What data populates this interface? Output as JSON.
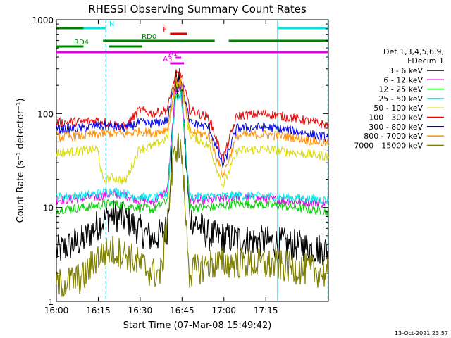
{
  "chart_data": {
    "type": "line",
    "title": "RHESSI Observing Summary Count Rates",
    "xlabel": "Start Time (07-Mar-08 15:49:42)",
    "ylabel": "Count Rate (s⁻¹ detector⁻¹)",
    "y_scale": "log",
    "ylim": [
      1,
      1000
    ],
    "xlim_minutes": [
      -9.7,
      87.7
    ],
    "x_ticks": [
      "16:00",
      "16:15",
      "16:30",
      "16:45",
      "17:00",
      "17:15"
    ],
    "y_ticks": [
      "1",
      "10",
      "100",
      "1000"
    ],
    "grid": false,
    "timestamp": "13-Oct-2021 23:57",
    "legend_header": [
      "Det 1,3,4,5,6,9,",
      "FDecim 1"
    ],
    "legend_position": "right",
    "series": [
      {
        "name": "3 - 6 keV",
        "color": "#000000",
        "points": [
          [
            -9.7,
            3.4
          ],
          [
            0,
            4.5
          ],
          [
            5,
            6.5
          ],
          [
            10,
            8.5
          ],
          [
            15,
            7.5
          ],
          [
            20,
            5.8
          ],
          [
            25,
            4.6
          ],
          [
            30,
            6
          ],
          [
            33,
            200
          ],
          [
            35,
            210
          ],
          [
            38,
            8
          ],
          [
            45,
            5
          ],
          [
            55,
            4.6
          ],
          [
            70,
            4.2
          ],
          [
            87.7,
            3.5
          ]
        ]
      },
      {
        "name": "6 - 12 keV",
        "color": "#e600e6",
        "points": [
          [
            -9.7,
            12
          ],
          [
            0,
            12.5
          ],
          [
            5,
            13
          ],
          [
            10,
            14
          ],
          [
            15,
            13.5
          ],
          [
            20,
            12
          ],
          [
            25,
            11.5
          ],
          [
            30,
            15
          ],
          [
            33,
            180
          ],
          [
            35,
            185
          ],
          [
            38,
            12
          ],
          [
            45,
            12
          ],
          [
            55,
            13
          ],
          [
            70,
            12
          ],
          [
            87.7,
            11
          ]
        ]
      },
      {
        "name": "12 - 25 keV",
        "color": "#00cc00",
        "points": [
          [
            -9.7,
            9.5
          ],
          [
            0,
            10
          ],
          [
            5,
            10.5
          ],
          [
            10,
            11
          ],
          [
            15,
            10.5
          ],
          [
            20,
            10
          ],
          [
            25,
            9.5
          ],
          [
            30,
            12
          ],
          [
            33,
            160
          ],
          [
            35,
            165
          ],
          [
            38,
            10
          ],
          [
            45,
            10
          ],
          [
            55,
            11
          ],
          [
            70,
            10.5
          ],
          [
            87.7,
            9
          ]
        ]
      },
      {
        "name": "25 - 50 keV",
        "color": "#00e6e6",
        "points": [
          [
            -9.7,
            13
          ],
          [
            0,
            13.5
          ],
          [
            5,
            14
          ],
          [
            10,
            15
          ],
          [
            15,
            14
          ],
          [
            20,
            13
          ],
          [
            25,
            12.5
          ],
          [
            30,
            14
          ],
          [
            33,
            150
          ],
          [
            35,
            155
          ],
          [
            38,
            13
          ],
          [
            45,
            13
          ],
          [
            55,
            13.5
          ],
          [
            70,
            13
          ],
          [
            87.7,
            12
          ]
        ]
      },
      {
        "name": "50 - 100 keV",
        "color": "#d9d900",
        "points": [
          [
            -9.7,
            38
          ],
          [
            0,
            40
          ],
          [
            5,
            42
          ],
          [
            7,
            19
          ],
          [
            10,
            21
          ],
          [
            15,
            19
          ],
          [
            20,
            42
          ],
          [
            25,
            45
          ],
          [
            30,
            55
          ],
          [
            33,
            210
          ],
          [
            35,
            215
          ],
          [
            38,
            60
          ],
          [
            45,
            45
          ],
          [
            50,
            17
          ],
          [
            55,
            40
          ],
          [
            65,
            42
          ],
          [
            70,
            40
          ],
          [
            87.7,
            35
          ]
        ]
      },
      {
        "name": "100 - 300 keV",
        "color": "#e60000",
        "points": [
          [
            -9.7,
            80
          ],
          [
            0,
            82
          ],
          [
            5,
            85
          ],
          [
            10,
            78
          ],
          [
            15,
            72
          ],
          [
            20,
            110
          ],
          [
            25,
            100
          ],
          [
            30,
            110
          ],
          [
            33,
            260
          ],
          [
            35,
            265
          ],
          [
            38,
            110
          ],
          [
            45,
            90
          ],
          [
            50,
            33
          ],
          [
            55,
            95
          ],
          [
            65,
            100
          ],
          [
            75,
            90
          ],
          [
            87.7,
            75
          ]
        ]
      },
      {
        "name": "300 - 800 keV",
        "color": "#0000e6",
        "points": [
          [
            -9.7,
            68
          ],
          [
            0,
            70
          ],
          [
            5,
            75
          ],
          [
            10,
            73
          ],
          [
            15,
            70
          ],
          [
            20,
            80
          ],
          [
            25,
            78
          ],
          [
            30,
            85
          ],
          [
            33,
            230
          ],
          [
            35,
            235
          ],
          [
            38,
            80
          ],
          [
            45,
            72
          ],
          [
            50,
            28
          ],
          [
            55,
            70
          ],
          [
            65,
            72
          ],
          [
            75,
            66
          ],
          [
            87.7,
            55
          ]
        ]
      },
      {
        "name": "800 - 7000 keV",
        "color": "#ff8c00",
        "points": [
          [
            -9.7,
            56
          ],
          [
            0,
            58
          ],
          [
            5,
            60
          ],
          [
            10,
            62
          ],
          [
            15,
            60
          ],
          [
            20,
            65
          ],
          [
            25,
            62
          ],
          [
            30,
            68
          ],
          [
            33,
            220
          ],
          [
            35,
            222
          ],
          [
            38,
            65
          ],
          [
            45,
            58
          ],
          [
            50,
            22
          ],
          [
            55,
            58
          ],
          [
            65,
            60
          ],
          [
            75,
            56
          ],
          [
            87.7,
            48
          ]
        ]
      },
      {
        "name": "7000 - 15000 keV",
        "color": "#808000",
        "points": [
          [
            -9.7,
            1.5
          ],
          [
            0,
            1.8
          ],
          [
            5,
            3
          ],
          [
            10,
            3.5
          ],
          [
            15,
            3.2
          ],
          [
            20,
            2.5
          ],
          [
            25,
            2
          ],
          [
            28,
            2
          ],
          [
            30,
            8
          ],
          [
            33,
            45
          ],
          [
            35,
            42
          ],
          [
            38,
            2
          ],
          [
            45,
            2.5
          ],
          [
            55,
            2.6
          ],
          [
            70,
            2.4
          ],
          [
            87.7,
            2
          ]
        ]
      }
    ],
    "annotations": [
      {
        "label": "N",
        "color": "#00e6e6",
        "segments": [
          [
            -9.7,
            8
          ]
        ]
      },
      {
        "label": "",
        "color": "#00e6e6",
        "segments": [
          [
            69.5,
            87.7
          ]
        ]
      },
      {
        "label": "F",
        "color": "#e60000",
        "segments": [
          [
            31,
            37
          ]
        ]
      },
      {
        "label": "RD0",
        "color": "#008000",
        "segments": [
          [
            7,
            47
          ],
          [
            52,
            87.7
          ]
        ]
      },
      {
        "label": "RD4",
        "color": "#008000",
        "segments": [
          [
            -9.7,
            0
          ],
          [
            9,
            21
          ]
        ]
      },
      {
        "label": "",
        "color": "#008000",
        "segments": [
          [
            -9.7,
            0
          ]
        ]
      },
      {
        "label": "A1",
        "color": "#e600e6",
        "segments": [
          [
            33,
            35
          ]
        ]
      },
      {
        "label": "A3",
        "color": "#e600e6",
        "segments": [
          [
            31,
            36
          ]
        ]
      },
      {
        "label": "",
        "color": "#e600e6",
        "segments": [
          [
            -9.7,
            87.7
          ]
        ]
      }
    ],
    "vertical_markers": [
      {
        "x": 8,
        "color": "#00e6e6",
        "style": "dashed"
      },
      {
        "x": 69.5,
        "color": "#00e6e6",
        "style": "solid"
      },
      {
        "x": 87.5,
        "color": "#00e6e6",
        "style": "dashed"
      }
    ]
  }
}
